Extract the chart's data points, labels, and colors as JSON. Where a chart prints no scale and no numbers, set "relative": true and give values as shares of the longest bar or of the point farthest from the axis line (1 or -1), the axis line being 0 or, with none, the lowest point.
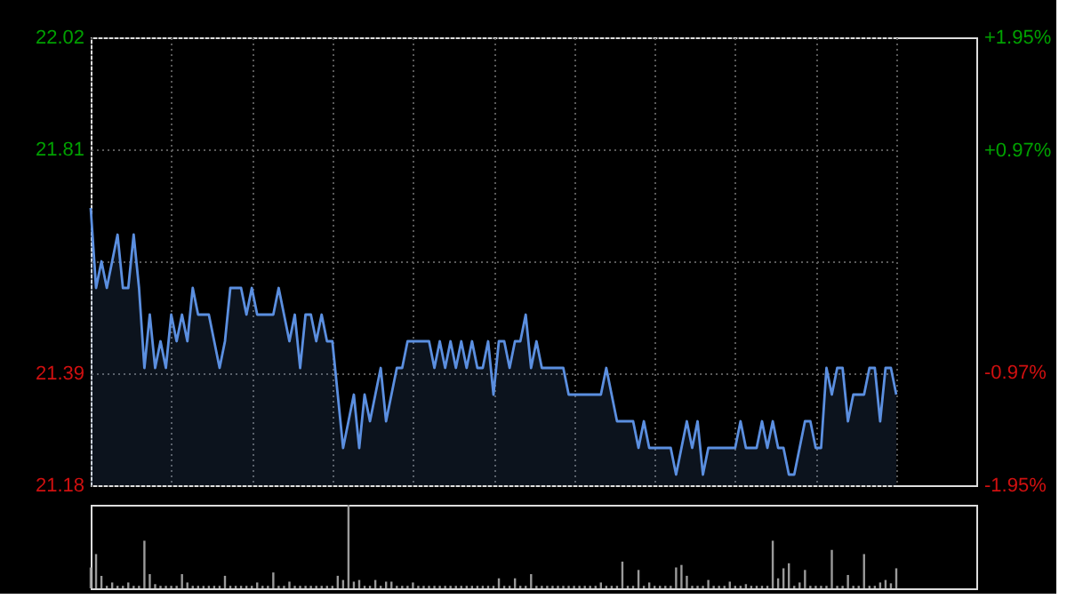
{
  "chart_data": [
    {
      "type": "area",
      "categories": [
        null,
        null,
        null,
        null,
        null,
        null,
        null,
        null,
        null,
        null,
        null,
        null,
        null,
        null,
        null,
        null,
        null,
        null,
        null,
        null,
        null,
        null,
        null,
        null,
        null,
        null,
        null,
        null,
        null,
        null,
        null,
        null,
        null,
        null,
        null,
        null,
        null,
        null,
        null,
        null,
        null,
        null,
        null,
        null,
        null,
        null,
        null,
        null,
        null,
        null,
        null,
        null,
        null,
        null,
        null,
        null,
        null,
        null,
        null,
        null,
        null,
        null,
        null,
        null,
        null,
        null,
        null,
        null,
        null,
        null,
        null,
        null,
        null,
        null,
        null,
        null,
        null,
        null,
        null,
        null,
        null,
        null,
        null,
        null,
        null,
        null,
        null,
        null,
        null,
        null,
        null,
        null,
        null,
        null,
        null,
        null,
        null,
        null,
        null,
        null,
        null,
        null,
        null,
        null,
        null,
        null,
        null,
        null,
        null,
        null,
        null,
        null,
        null,
        null,
        null,
        null,
        null,
        null,
        null,
        null,
        null,
        null,
        null,
        null,
        null,
        null,
        null,
        null,
        null,
        null,
        null,
        null,
        null,
        null,
        null,
        null,
        null,
        null,
        null,
        null,
        null,
        null,
        null,
        null,
        null,
        null,
        null,
        null,
        null,
        null,
        null
      ],
      "series": [
        {
          "color": "#5b8fe0",
          "values": [
            21.7,
            21.55,
            21.6,
            21.55,
            21.6,
            21.65,
            21.55,
            21.55,
            21.65,
            21.55,
            21.4,
            21.5,
            21.4,
            21.45,
            21.4,
            21.5,
            21.45,
            21.5,
            21.45,
            21.55,
            21.5,
            21.5,
            21.5,
            21.45,
            21.4,
            21.45,
            21.55,
            21.55,
            21.55,
            21.5,
            21.55,
            21.5,
            21.5,
            21.5,
            21.5,
            21.55,
            21.5,
            21.45,
            21.5,
            21.4,
            21.5,
            21.5,
            21.45,
            21.5,
            21.45,
            21.45,
            21.35,
            21.25,
            21.3,
            21.35,
            21.25,
            21.35,
            21.3,
            21.35,
            21.4,
            21.3,
            21.35,
            21.4,
            21.4,
            21.45,
            21.45,
            21.45,
            21.45,
            21.45,
            21.4,
            21.45,
            21.4,
            21.45,
            21.4,
            21.45,
            21.4,
            21.45,
            21.4,
            21.4,
            21.45,
            21.35,
            21.45,
            21.45,
            21.4,
            21.45,
            21.45,
            21.5,
            21.4,
            21.45,
            21.4,
            21.4,
            21.4,
            21.4,
            21.4,
            21.35,
            21.35,
            21.35,
            21.35,
            21.35,
            21.35,
            21.35,
            21.4,
            21.35,
            21.3,
            21.3,
            21.3,
            21.3,
            21.25,
            21.3,
            21.25,
            21.25,
            21.25,
            21.25,
            21.25,
            21.2,
            21.25,
            21.3,
            21.25,
            21.3,
            21.2,
            21.25,
            21.25,
            21.25,
            21.25,
            21.25,
            21.25,
            21.3,
            21.25,
            21.25,
            21.25,
            21.3,
            21.25,
            21.3,
            21.25,
            21.25,
            21.2,
            21.2,
            21.25,
            21.3,
            21.3,
            21.25,
            21.25,
            21.4,
            21.35,
            21.4,
            21.4,
            21.3,
            21.35,
            21.35,
            21.35,
            21.4,
            21.4,
            21.3,
            21.4,
            21.4,
            21.35
          ]
        }
      ],
      "ylim": [
        21.18,
        22.02
      ],
      "yticks": [
        21.18,
        21.39,
        {
          "value": 21.6,
          "label": null
        },
        21.81,
        22.02
      ],
      "y2lim": [
        -1.95,
        1.95
      ],
      "y2ticks": [
        {
          "value": -1.95,
          "label": "-1.95%"
        },
        {
          "value": -0.97,
          "label": "-0.97%"
        },
        {
          "value": 0,
          "label": null
        },
        {
          "value": 0.97,
          "label": "+0.97%"
        },
        {
          "value": 1.95,
          "label": "+1.95%"
        }
      ],
      "grid": true
    },
    {
      "type": "bar",
      "relative": true,
      "categories": [
        null,
        null,
        null,
        null,
        null,
        null,
        null,
        null,
        null,
        null,
        null,
        null,
        null,
        null,
        null,
        null,
        null,
        null,
        null,
        null,
        null,
        null,
        null,
        null,
        null,
        null,
        null,
        null,
        null,
        null,
        null,
        null,
        null,
        null,
        null,
        null,
        null,
        null,
        null,
        null,
        null,
        null,
        null,
        null,
        null,
        null,
        null,
        null,
        null,
        null,
        null,
        null,
        null,
        null,
        null,
        null,
        null,
        null,
        null,
        null,
        null,
        null,
        null,
        null,
        null,
        null,
        null,
        null,
        null,
        null,
        null,
        null,
        null,
        null,
        null,
        null,
        null,
        null,
        null,
        null,
        null,
        null,
        null,
        null,
        null,
        null,
        null,
        null,
        null,
        null,
        null,
        null,
        null,
        null,
        null,
        null,
        null,
        null,
        null,
        null,
        null,
        null,
        null,
        null,
        null,
        null,
        null,
        null,
        null,
        null,
        null,
        null,
        null,
        null,
        null,
        null,
        null,
        null,
        null,
        null,
        null,
        null,
        null,
        null,
        null,
        null,
        null,
        null,
        null,
        null,
        null,
        null,
        null,
        null,
        null,
        null,
        null,
        null,
        null,
        null,
        null,
        null,
        null,
        null,
        null,
        null,
        null,
        null,
        null,
        null,
        null
      ],
      "series": [
        {
          "color": "#9a9a9a",
          "values": [
            0.25,
            0.41,
            0.15,
            0.03,
            0.07,
            0.03,
            0.03,
            0.07,
            0.03,
            0.03,
            0.57,
            0.17,
            0.05,
            0.03,
            0.03,
            0.03,
            0.03,
            0.17,
            0.07,
            0.03,
            0.03,
            0.03,
            0.03,
            0.03,
            0.03,
            0.15,
            0.03,
            0.03,
            0.03,
            0.03,
            0.03,
            0.07,
            0.03,
            0.03,
            0.19,
            0.03,
            0.03,
            0.08,
            0.03,
            0.03,
            0.03,
            0.03,
            0.03,
            0.03,
            0.03,
            0.03,
            0.15,
            0.1,
            1.0,
            0.08,
            0.1,
            0.03,
            0.03,
            0.1,
            0.03,
            0.08,
            0.08,
            0.03,
            0.03,
            0.03,
            0.07,
            0.03,
            0.03,
            0.03,
            0.03,
            0.03,
            0.03,
            0.03,
            0.03,
            0.03,
            0.03,
            0.03,
            0.03,
            0.03,
            0.03,
            0.03,
            0.12,
            0.03,
            0.03,
            0.12,
            0.03,
            0.03,
            0.17,
            0.03,
            0.03,
            0.03,
            0.03,
            0.03,
            0.03,
            0.03,
            0.03,
            0.03,
            0.03,
            0.03,
            0.03,
            0.07,
            0.03,
            0.03,
            0.03,
            0.32,
            0.03,
            0.03,
            0.22,
            0.03,
            0.07,
            0.03,
            0.03,
            0.03,
            0.03,
            0.25,
            0.28,
            0.15,
            0.03,
            0.03,
            0.03,
            0.1,
            0.03,
            0.03,
            0.03,
            0.08,
            0.03,
            0.03,
            0.05,
            0.03,
            0.03,
            0.03,
            0.03,
            0.57,
            0.12,
            0.24,
            0.3,
            0.03,
            0.07,
            0.22,
            0.03,
            0.03,
            0.03,
            0.03,
            0.46,
            0.03,
            0.03,
            0.16,
            0.03,
            0.03,
            0.41,
            0.03,
            0.03,
            0.07,
            0.1,
            0.06,
            0.24
          ]
        }
      ]
    }
  ]
}
